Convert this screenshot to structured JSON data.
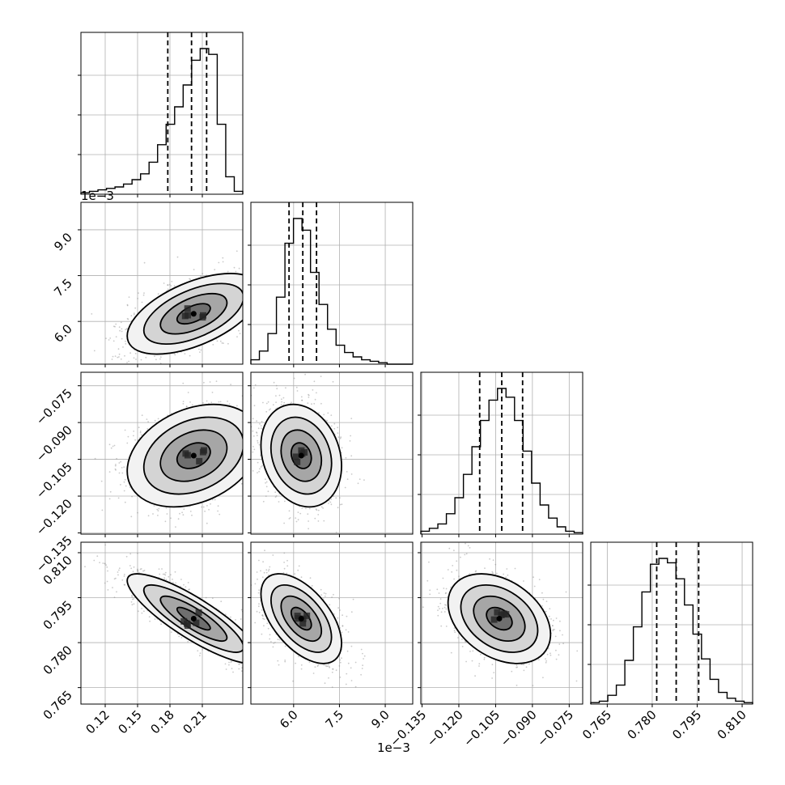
{
  "chart_data": {
    "type": "corner",
    "parameters": [
      {
        "ticks": [
          "0.12",
          "0.15",
          "0.18",
          "0.21"
        ],
        "tick_values": [
          0.12,
          0.15,
          0.18,
          0.21
        ],
        "range": [
          0.0975,
          0.2475
        ],
        "quantiles": [
          0.178,
          0.2,
          0.214
        ],
        "offset_label": ""
      },
      {
        "ticks": [
          "6.0",
          "7.5",
          "9.0"
        ],
        "tick_values": [
          6.0,
          7.5,
          9.0
        ],
        "range": [
          4.6,
          9.9
        ],
        "quantiles": [
          5.85,
          6.3,
          6.75
        ],
        "offset_label": "1e−3"
      },
      {
        "ticks": [
          "−0.135",
          "−0.120",
          "−0.105",
          "−0.090",
          "−0.075"
        ],
        "tick_values": [
          -0.135,
          -0.12,
          -0.105,
          -0.09,
          -0.075
        ],
        "range": [
          -0.1355,
          -0.0695
        ],
        "quantiles": [
          -0.1115,
          -0.1025,
          -0.094
        ],
        "offset_label": ""
      },
      {
        "ticks": [
          "0.765",
          "0.780",
          "0.795",
          "0.810"
        ],
        "tick_values": [
          0.765,
          0.78,
          0.795,
          0.81
        ],
        "range": [
          0.7595,
          0.8135
        ],
        "quantiles": [
          0.7815,
          0.788,
          0.7955
        ],
        "offset_label": ""
      }
    ],
    "histograms": [
      [
        0.01,
        0.02,
        0.03,
        0.04,
        0.05,
        0.07,
        0.1,
        0.14,
        0.22,
        0.34,
        0.48,
        0.6,
        0.75,
        0.92,
        1.0,
        0.96,
        0.48,
        0.12,
        0.02
      ],
      [
        0.03,
        0.09,
        0.21,
        0.46,
        0.83,
        1.0,
        0.92,
        0.63,
        0.41,
        0.24,
        0.13,
        0.08,
        0.05,
        0.03,
        0.02,
        0.01,
        0.0,
        0.0,
        0.0
      ],
      [
        0.02,
        0.04,
        0.07,
        0.14,
        0.25,
        0.41,
        0.6,
        0.78,
        0.92,
        1.0,
        0.94,
        0.78,
        0.57,
        0.35,
        0.2,
        0.11,
        0.05,
        0.02,
        0.01
      ],
      [
        0.01,
        0.02,
        0.06,
        0.13,
        0.3,
        0.53,
        0.77,
        0.96,
        1.0,
        0.97,
        0.86,
        0.68,
        0.48,
        0.31,
        0.17,
        0.08,
        0.04,
        0.02,
        0.01
      ]
    ],
    "pairs": [
      {
        "x": 0,
        "y": 1,
        "mean": [
          0.202,
          6.25
        ],
        "sd": [
          0.028,
          0.6
        ],
        "corr": 0.55
      },
      {
        "x": 0,
        "y": 2,
        "mean": [
          0.202,
          -0.1035
        ],
        "sd": [
          0.028,
          0.0095
        ],
        "corr": 0.3
      },
      {
        "x": 1,
        "y": 2,
        "mean": [
          6.25,
          -0.1035
        ],
        "sd": [
          0.6,
          0.0095
        ],
        "corr": -0.2
      },
      {
        "x": 0,
        "y": 3,
        "mean": [
          0.202,
          0.788
        ],
        "sd": [
          0.028,
          0.0068
        ],
        "corr": -0.85
      },
      {
        "x": 1,
        "y": 3,
        "mean": [
          6.25,
          0.788
        ],
        "sd": [
          0.6,
          0.0068
        ],
        "corr": -0.55
      },
      {
        "x": 2,
        "y": 3,
        "mean": [
          -0.1035,
          0.788
        ],
        "sd": [
          0.0095,
          0.0068
        ],
        "corr": -0.35
      }
    ],
    "contour_levels": [
      0.5,
      1.0,
      1.5,
      2.0
    ],
    "grid": true
  }
}
